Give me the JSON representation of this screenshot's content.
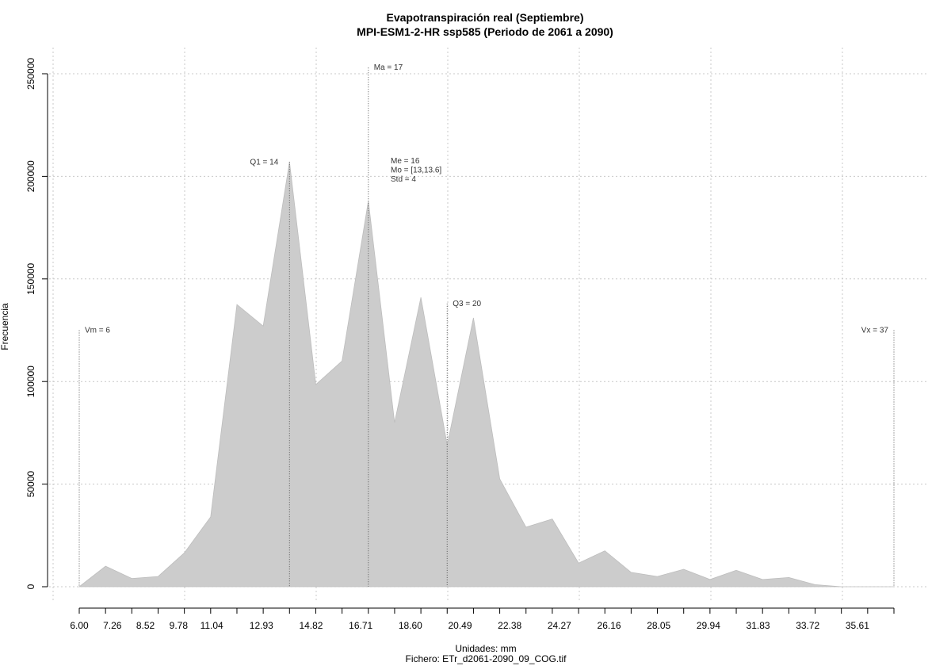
{
  "chart_data": {
    "type": "area",
    "title": "Evapotranspiración real (Septiembre)",
    "subtitle": "MPI-ESM1-2-HR ssp585 (Periodo de 2061 a 2090)",
    "xlabel": "Unidades: mm",
    "footer": "Fichero: ETr_d2061-2090_09_COG.tif",
    "ylabel": "Frecuencia",
    "xlim": [
      6.0,
      37.0
    ],
    "ylim": [
      0,
      250000
    ],
    "x_tick_labels": [
      "6.00",
      "7.26",
      "8.52",
      "9.78",
      "11.04",
      "12.93",
      "14.82",
      "16.71",
      "18.60",
      "20.49",
      "22.38",
      "24.27",
      "26.16",
      "28.05",
      "29.94",
      "31.83",
      "33.72",
      "35.61"
    ],
    "y_tick_labels": [
      "0",
      "50000",
      "100000",
      "150000",
      "200000",
      "250000"
    ],
    "grid": true,
    "fill_color": "#cccccc",
    "x": [
      6.0,
      7.0,
      8.0,
      8.5,
      9.0,
      10.0,
      11.0,
      12.0,
      13.0,
      14.0,
      15.0,
      16.0,
      17.0,
      18.0,
      19.0,
      20.0,
      21.0,
      22.0,
      23.0,
      24.0,
      25.0,
      26.0,
      27.0,
      28.0,
      29.0,
      30.0,
      31.0,
      32.0,
      32.5,
      33.0,
      34.0,
      35.0,
      36.0,
      37.0
    ],
    "y": [
      0,
      10000,
      4000,
      4500,
      5000,
      16500,
      34000,
      137500,
      127000,
      207000,
      98500,
      110000,
      188000,
      80000,
      141000,
      69000,
      131000,
      52500,
      29000,
      33000,
      11500,
      17500,
      7000,
      5000,
      8500,
      3500,
      8000,
      3500,
      4000,
      4500,
      1000,
      0,
      0,
      0
    ],
    "annotations": [
      {
        "label": "Vm = 6",
        "x": 6.0,
        "y": 125000
      },
      {
        "label": "Q1 = 14",
        "x": 14.0,
        "y": 207000
      },
      {
        "label": "Ma = 17",
        "x": 17.0,
        "y": 253000
      },
      {
        "label": "Q3 = 20",
        "x": 20.0,
        "y": 138000
      },
      {
        "label": "Vx = 37",
        "x": 37.0,
        "y": 125000
      }
    ],
    "stats_text": [
      "Me = 16",
      "Mo = [13,13.6]",
      "Std = 4"
    ]
  }
}
